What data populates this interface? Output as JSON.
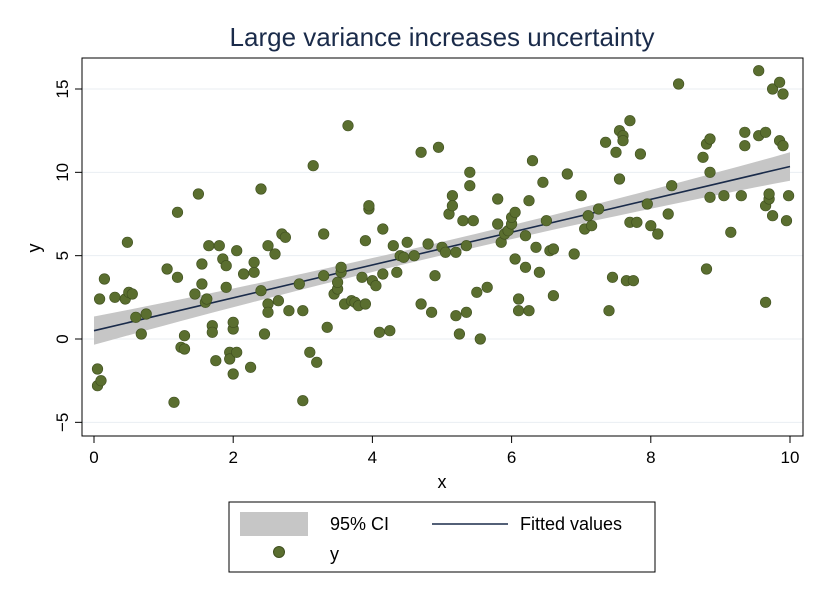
{
  "chart_data": {
    "type": "scatter",
    "title": "Large variance increases uncertainty",
    "xlabel": "x",
    "ylabel": "y",
    "xlim": [
      0,
      10
    ],
    "ylim": [
      -5,
      17
    ],
    "xticks": [
      "0",
      "2",
      "4",
      "6",
      "8",
      "10"
    ],
    "xtick_values": [
      0,
      2,
      4,
      6,
      8,
      10
    ],
    "yticks": [
      "−5",
      "0",
      "5",
      "10",
      "15"
    ],
    "ytick_values": [
      -5,
      0,
      5,
      10,
      15
    ],
    "grid": true,
    "legend_placement": "bottom",
    "colors": {
      "points": "#5a6e2f",
      "points_edge": "#3f4f1f",
      "ci_band": "#c6c6c6",
      "fit_line": "#1a2b4a",
      "grid": "#eaeef2",
      "frame": "#000000"
    },
    "fit": {
      "name": "Fitted values",
      "intercept": 0.5,
      "slope": 0.985,
      "ci_name": "95% CI",
      "ci_halfwidth_at_ends": 0.85,
      "ci_halfwidth_at_center": 0.4,
      "x_center": 5.0
    },
    "series": [
      {
        "name": "y",
        "points": [
          [
            0.05,
            -1.8
          ],
          [
            0.05,
            -2.8
          ],
          [
            0.1,
            -2.5
          ],
          [
            0.08,
            2.4
          ],
          [
            0.15,
            3.6
          ],
          [
            0.3,
            2.5
          ],
          [
            0.45,
            2.4
          ],
          [
            0.48,
            5.8
          ],
          [
            0.5,
            2.8
          ],
          [
            0.55,
            2.7
          ],
          [
            0.6,
            1.3
          ],
          [
            0.68,
            0.3
          ],
          [
            0.75,
            1.5
          ],
          [
            1.05,
            4.2
          ],
          [
            1.15,
            -3.8
          ],
          [
            1.2,
            7.6
          ],
          [
            1.2,
            3.7
          ],
          [
            1.25,
            -0.5
          ],
          [
            1.3,
            0.2
          ],
          [
            1.3,
            -0.6
          ],
          [
            1.45,
            2.7
          ],
          [
            1.5,
            8.7
          ],
          [
            1.55,
            4.5
          ],
          [
            1.55,
            3.3
          ],
          [
            1.6,
            2.2
          ],
          [
            1.62,
            2.4
          ],
          [
            1.65,
            5.6
          ],
          [
            1.7,
            0.8
          ],
          [
            1.7,
            0.4
          ],
          [
            1.75,
            -1.3
          ],
          [
            1.8,
            5.6
          ],
          [
            1.85,
            4.8
          ],
          [
            1.9,
            3.1
          ],
          [
            1.9,
            4.4
          ],
          [
            1.95,
            -0.8
          ],
          [
            1.95,
            -1.2
          ],
          [
            2.0,
            0.6
          ],
          [
            2.0,
            1.0
          ],
          [
            2.0,
            -2.1
          ],
          [
            2.05,
            5.3
          ],
          [
            2.05,
            -0.8
          ],
          [
            2.15,
            3.9
          ],
          [
            2.25,
            -1.7
          ],
          [
            2.3,
            4.0
          ],
          [
            2.3,
            4.6
          ],
          [
            2.4,
            9.0
          ],
          [
            2.4,
            2.9
          ],
          [
            2.45,
            0.3
          ],
          [
            2.5,
            2.1
          ],
          [
            2.5,
            1.6
          ],
          [
            2.5,
            5.6
          ],
          [
            2.6,
            5.1
          ],
          [
            2.65,
            2.3
          ],
          [
            2.7,
            6.3
          ],
          [
            2.75,
            6.1
          ],
          [
            2.8,
            1.7
          ],
          [
            2.95,
            3.3
          ],
          [
            3.0,
            -3.7
          ],
          [
            3.0,
            1.7
          ],
          [
            3.1,
            -0.8
          ],
          [
            3.15,
            10.4
          ],
          [
            3.2,
            -1.4
          ],
          [
            3.3,
            6.3
          ],
          [
            3.3,
            3.8
          ],
          [
            3.35,
            0.7
          ],
          [
            3.45,
            2.7
          ],
          [
            3.5,
            3.0
          ],
          [
            3.5,
            3.4
          ],
          [
            3.55,
            4.0
          ],
          [
            3.55,
            4.3
          ],
          [
            3.6,
            2.1
          ],
          [
            3.65,
            12.8
          ],
          [
            3.7,
            2.3
          ],
          [
            3.75,
            2.2
          ],
          [
            3.8,
            2.0
          ],
          [
            3.85,
            3.7
          ],
          [
            3.9,
            5.9
          ],
          [
            3.9,
            2.1
          ],
          [
            3.95,
            7.8
          ],
          [
            3.95,
            8.0
          ],
          [
            4.0,
            3.5
          ],
          [
            4.05,
            3.2
          ],
          [
            4.1,
            0.4
          ],
          [
            4.15,
            6.6
          ],
          [
            4.15,
            3.9
          ],
          [
            4.25,
            0.5
          ],
          [
            4.3,
            5.6
          ],
          [
            4.35,
            4.0
          ],
          [
            4.4,
            5.0
          ],
          [
            4.45,
            4.9
          ],
          [
            4.5,
            5.8
          ],
          [
            4.6,
            5.0
          ],
          [
            4.7,
            2.1
          ],
          [
            4.7,
            11.2
          ],
          [
            4.8,
            5.7
          ],
          [
            4.85,
            1.6
          ],
          [
            4.9,
            3.8
          ],
          [
            4.95,
            11.5
          ],
          [
            5.0,
            5.5
          ],
          [
            5.05,
            5.2
          ],
          [
            5.1,
            7.5
          ],
          [
            5.15,
            8.6
          ],
          [
            5.15,
            8.0
          ],
          [
            5.2,
            5.2
          ],
          [
            5.2,
            1.4
          ],
          [
            5.25,
            0.3
          ],
          [
            5.3,
            7.1
          ],
          [
            5.35,
            5.6
          ],
          [
            5.35,
            1.6
          ],
          [
            5.4,
            9.2
          ],
          [
            5.4,
            10.0
          ],
          [
            5.45,
            7.1
          ],
          [
            5.5,
            2.8
          ],
          [
            5.55,
            0.0
          ],
          [
            5.65,
            3.1
          ],
          [
            5.8,
            8.4
          ],
          [
            5.8,
            6.9
          ],
          [
            5.85,
            5.8
          ],
          [
            5.9,
            6.3
          ],
          [
            5.95,
            6.5
          ],
          [
            6.0,
            6.9
          ],
          [
            6.0,
            7.3
          ],
          [
            6.05,
            7.6
          ],
          [
            6.05,
            4.8
          ],
          [
            6.1,
            1.7
          ],
          [
            6.1,
            2.4
          ],
          [
            6.2,
            6.2
          ],
          [
            6.2,
            4.3
          ],
          [
            6.25,
            8.3
          ],
          [
            6.25,
            1.7
          ],
          [
            6.3,
            10.7
          ],
          [
            6.35,
            5.5
          ],
          [
            6.4,
            4.0
          ],
          [
            6.45,
            9.4
          ],
          [
            6.5,
            7.1
          ],
          [
            6.55,
            5.3
          ],
          [
            6.6,
            5.4
          ],
          [
            6.6,
            2.6
          ],
          [
            6.8,
            9.9
          ],
          [
            6.9,
            5.1
          ],
          [
            7.0,
            8.6
          ],
          [
            7.05,
            6.6
          ],
          [
            7.1,
            7.4
          ],
          [
            7.15,
            6.8
          ],
          [
            7.25,
            7.8
          ],
          [
            7.35,
            11.8
          ],
          [
            7.4,
            1.7
          ],
          [
            7.45,
            3.7
          ],
          [
            7.5,
            11.2
          ],
          [
            7.55,
            9.6
          ],
          [
            7.55,
            12.5
          ],
          [
            7.6,
            12.2
          ],
          [
            7.6,
            11.9
          ],
          [
            7.65,
            3.5
          ],
          [
            7.7,
            13.1
          ],
          [
            7.7,
            7.0
          ],
          [
            7.75,
            3.5
          ],
          [
            7.8,
            7.0
          ],
          [
            7.85,
            11.1
          ],
          [
            7.95,
            8.1
          ],
          [
            8.0,
            6.8
          ],
          [
            8.1,
            6.3
          ],
          [
            8.25,
            7.5
          ],
          [
            8.3,
            9.2
          ],
          [
            8.4,
            15.3
          ],
          [
            8.75,
            10.9
          ],
          [
            8.8,
            11.7
          ],
          [
            8.8,
            4.2
          ],
          [
            8.85,
            8.5
          ],
          [
            8.85,
            12.0
          ],
          [
            8.85,
            10.0
          ],
          [
            9.05,
            8.6
          ],
          [
            9.15,
            6.4
          ],
          [
            9.3,
            8.6
          ],
          [
            9.35,
            12.4
          ],
          [
            9.35,
            11.6
          ],
          [
            9.55,
            12.2
          ],
          [
            9.55,
            16.1
          ],
          [
            9.65,
            12.4
          ],
          [
            9.65,
            8.0
          ],
          [
            9.65,
            2.2
          ],
          [
            9.7,
            8.4
          ],
          [
            9.7,
            8.7
          ],
          [
            9.75,
            15.0
          ],
          [
            9.75,
            7.4
          ],
          [
            9.85,
            11.9
          ],
          [
            9.85,
            15.4
          ],
          [
            9.9,
            14.7
          ],
          [
            9.9,
            11.6
          ],
          [
            9.95,
            7.1
          ],
          [
            9.98,
            8.6
          ]
        ]
      }
    ],
    "legend": {
      "ci_label": "95% CI",
      "fit_label": "Fitted values",
      "points_label": "y"
    }
  }
}
